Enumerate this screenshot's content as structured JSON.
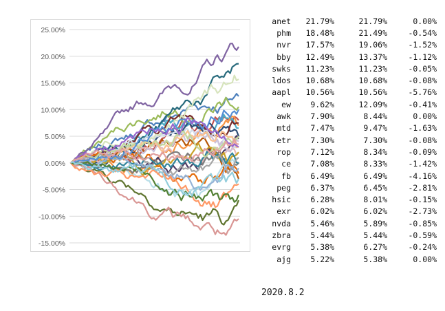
{
  "chart_data": {
    "type": "line",
    "title": "",
    "xlabel": "",
    "ylabel": "",
    "ylim": [
      -0.15,
      0.25
    ],
    "y_ticks": [
      "25.00%",
      "20.00%",
      "15.00%",
      "10.00%",
      "5.00%",
      "0.00%",
      "-5.00%",
      "-10.00%",
      "-15.00%"
    ],
    "y_tick_values": [
      0.25,
      0.2,
      0.15,
      0.1,
      0.05,
      0.0,
      -0.05,
      -0.1,
      -0.15
    ],
    "grid": true,
    "legend": "none",
    "n_points": 80,
    "series": [
      {
        "color": "#4f81bd",
        "end": 0.125
      },
      {
        "color": "#c0504d",
        "end": 0.08
      },
      {
        "color": "#9bbb59",
        "end": 0.105
      },
      {
        "color": "#8064a2",
        "end": 0.2179
      },
      {
        "color": "#4bacc6",
        "end": 0.065
      },
      {
        "color": "#f79646",
        "end": 0.07
      },
      {
        "color": "#2c4d75",
        "end": 0.05
      },
      {
        "color": "#772c2a",
        "end": 0.0747
      },
      {
        "color": "#5f7530",
        "end": -0.07
      },
      {
        "color": "#4d3b62",
        "end": 0.045
      },
      {
        "color": "#276a7c",
        "end": 0.186
      },
      {
        "color": "#b65708",
        "end": -0.03
      },
      {
        "color": "#d0dbe9",
        "end": 0.03
      },
      {
        "color": "#e6b9b8",
        "end": 0.02
      },
      {
        "color": "#d7e4bd",
        "end": 0.157
      },
      {
        "color": "#ccc1da",
        "end": 0.04
      },
      {
        "color": "#b7dee8",
        "end": 0.01
      },
      {
        "color": "#fac090",
        "end": 0.03
      },
      {
        "color": "#7f7f7f",
        "end": 0.0
      },
      {
        "color": "#c9a227",
        "end": 0.02
      },
      {
        "color": "#e46c0a",
        "end": -0.02
      },
      {
        "color": "#31859c",
        "end": 0.0
      },
      {
        "color": "#d99694",
        "end": -0.105
      },
      {
        "color": "#a6a6a6",
        "end": 0.01
      },
      {
        "color": "#c3d69b",
        "end": 0.05
      },
      {
        "color": "#95b3d7",
        "end": -0.01
      },
      {
        "color": "#558ed5",
        "end": 0.1
      },
      {
        "color": "#ff9966",
        "end": -0.04
      },
      {
        "color": "#9966cc",
        "end": 0.03
      },
      {
        "color": "#538135",
        "end": -0.06
      },
      {
        "color": "#e2a0a0",
        "end": 0.035
      },
      {
        "color": "#92cddc",
        "end": -0.03
      }
    ]
  },
  "table": [
    {
      "ticker": "anet",
      "a": "21.79%",
      "b": "21.79%",
      "c": "0.00%"
    },
    {
      "ticker": "phm",
      "a": "18.48%",
      "b": "21.49%",
      "c": "-0.54%"
    },
    {
      "ticker": "nvr",
      "a": "17.57%",
      "b": "19.06%",
      "c": "-1.52%"
    },
    {
      "ticker": "bby",
      "a": "12.49%",
      "b": "13.37%",
      "c": "-1.12%"
    },
    {
      "ticker": "swks",
      "a": "11.23%",
      "b": "11.23%",
      "c": "-0.05%"
    },
    {
      "ticker": "ldos",
      "a": "10.68%",
      "b": "10.68%",
      "c": "-0.08%"
    },
    {
      "ticker": "aapl",
      "a": "10.56%",
      "b": "10.56%",
      "c": "-5.76%"
    },
    {
      "ticker": "ew",
      "a": "9.62%",
      "b": "12.09%",
      "c": "-0.41%"
    },
    {
      "ticker": "awk",
      "a": "7.90%",
      "b": "8.44%",
      "c": "0.00%"
    },
    {
      "ticker": "mtd",
      "a": "7.47%",
      "b": "9.47%",
      "c": "-1.63%"
    },
    {
      "ticker": "etr",
      "a": "7.30%",
      "b": "7.30%",
      "c": "-0.08%"
    },
    {
      "ticker": "rop",
      "a": "7.12%",
      "b": "8.34%",
      "c": "-0.09%"
    },
    {
      "ticker": "ce",
      "a": "7.08%",
      "b": "8.33%",
      "c": "-1.42%"
    },
    {
      "ticker": "fb",
      "a": "6.49%",
      "b": "6.49%",
      "c": "-4.16%"
    },
    {
      "ticker": "peg",
      "a": "6.37%",
      "b": "6.45%",
      "c": "-2.81%"
    },
    {
      "ticker": "hsic",
      "a": "6.28%",
      "b": "8.01%",
      "c": "-0.15%"
    },
    {
      "ticker": "exr",
      "a": "6.02%",
      "b": "6.02%",
      "c": "-2.73%"
    },
    {
      "ticker": "nvda",
      "a": "5.46%",
      "b": "5.89%",
      "c": "-0.85%"
    },
    {
      "ticker": "zbra",
      "a": "5.44%",
      "b": "5.44%",
      "c": "-0.59%"
    },
    {
      "ticker": "evrg",
      "a": "5.38%",
      "b": "6.27%",
      "c": "-0.24%"
    },
    {
      "ticker": "ajg",
      "a": "5.22%",
      "b": "5.38%",
      "c": "0.00%"
    }
  ],
  "date_label": "2020.8.2"
}
